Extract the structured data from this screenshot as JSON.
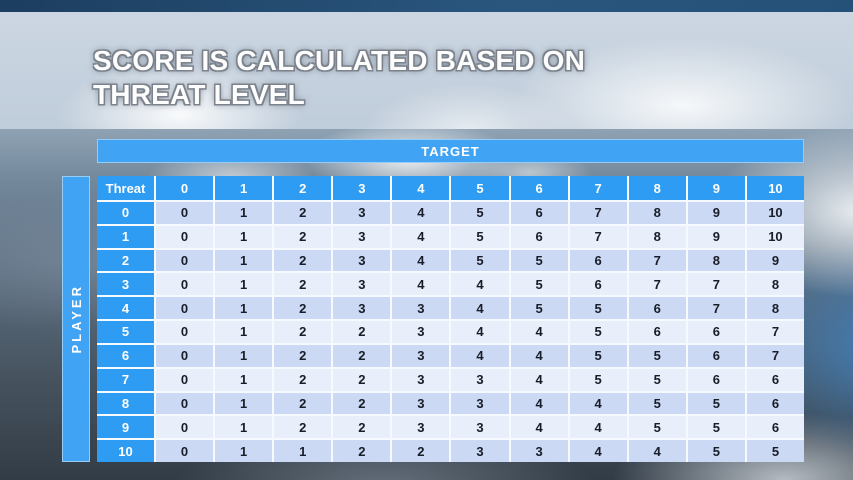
{
  "slide": {
    "title_line1": "SCORE IS CALCULATED BASED ON",
    "title_line2": "THREAT LEVEL"
  },
  "table": {
    "target_label": "TARGET",
    "player_label": "PLAYER",
    "corner_label": "Threat",
    "column_headers": [
      "0",
      "1",
      "2",
      "3",
      "4",
      "5",
      "6",
      "7",
      "8",
      "9",
      "10"
    ],
    "rows": [
      {
        "threat": "0",
        "values": [
          0,
          1,
          2,
          3,
          4,
          5,
          6,
          7,
          8,
          9,
          10
        ]
      },
      {
        "threat": "1",
        "values": [
          0,
          1,
          2,
          3,
          4,
          5,
          6,
          7,
          8,
          9,
          10
        ]
      },
      {
        "threat": "2",
        "values": [
          0,
          1,
          2,
          3,
          4,
          5,
          5,
          6,
          7,
          8,
          9
        ]
      },
      {
        "threat": "3",
        "values": [
          0,
          1,
          2,
          3,
          4,
          4,
          5,
          6,
          7,
          7,
          8
        ]
      },
      {
        "threat": "4",
        "values": [
          0,
          1,
          2,
          3,
          3,
          4,
          5,
          5,
          6,
          7,
          8
        ]
      },
      {
        "threat": "5",
        "values": [
          0,
          1,
          2,
          2,
          3,
          4,
          4,
          5,
          6,
          6,
          7
        ]
      },
      {
        "threat": "6",
        "values": [
          0,
          1,
          2,
          2,
          3,
          4,
          4,
          5,
          5,
          6,
          7
        ]
      },
      {
        "threat": "7",
        "values": [
          0,
          1,
          2,
          2,
          3,
          3,
          4,
          5,
          5,
          6,
          6
        ]
      },
      {
        "threat": "8",
        "values": [
          0,
          1,
          2,
          2,
          3,
          3,
          4,
          4,
          5,
          5,
          6
        ]
      },
      {
        "threat": "9",
        "values": [
          0,
          1,
          2,
          2,
          3,
          3,
          4,
          4,
          5,
          5,
          6
        ]
      },
      {
        "threat": "10",
        "values": [
          0,
          1,
          1,
          2,
          2,
          3,
          3,
          4,
          4,
          5,
          5
        ]
      }
    ]
  },
  "colors": {
    "header_blue": "#2e9cf2",
    "axis_bar_blue": "#41a3f3",
    "row_even_bg": "#cbd9f4",
    "row_odd_bg": "#e9eefb",
    "cell_text": "#181d28",
    "title_text": "#ffffff",
    "top_strip": "#1c3e60"
  }
}
